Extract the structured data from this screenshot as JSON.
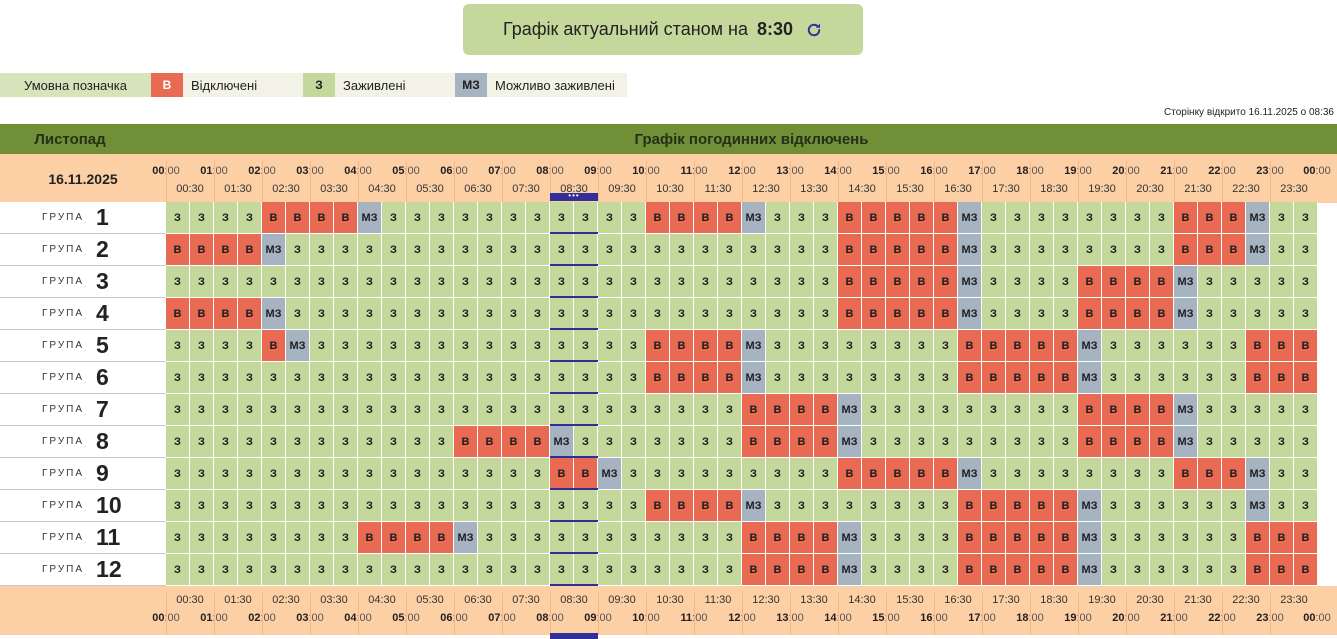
{
  "banner": {
    "text": "Графік актуальний станом на",
    "time": "8:30"
  },
  "legend": {
    "title": "Умовна позначка",
    "items": [
      {
        "code": "В",
        "label": "Відключені"
      },
      {
        "code": "З",
        "label": "Заживлені"
      },
      {
        "code": "МЗ",
        "label": "Можливо заживлені"
      }
    ]
  },
  "page_opened": "Сторінку відкрито 16.11.2025 о 08:36",
  "header": {
    "month": "Листопад",
    "title": "Графік погодинних відключень",
    "date": "16.11.2025"
  },
  "hours": [
    "00",
    "01",
    "02",
    "03",
    "04",
    "05",
    "06",
    "07",
    "08",
    "09",
    "10",
    "11",
    "12",
    "13",
    "14",
    "15",
    "16",
    "17",
    "18",
    "19",
    "20",
    "21",
    "22",
    "23",
    "00"
  ],
  "hour_suffix": ":00",
  "half_hours": [
    "00:30",
    "01:30",
    "02:30",
    "03:30",
    "04:30",
    "05:30",
    "06:30",
    "07:30",
    "08:30",
    "09:30",
    "10:30",
    "11:30",
    "12:30",
    "13:30",
    "14:30",
    "15:30",
    "16:30",
    "17:30",
    "18:30",
    "19:30",
    "20:30",
    "21:30",
    "22:30",
    "23:30"
  ],
  "group_word": "ГРУПА",
  "now_marker": "•••",
  "codes": {
    "z": "З",
    "v": "В",
    "m": "МЗ"
  },
  "colors": {
    "z": "#c5d89c",
    "v": "#e86a52",
    "m": "#a6b3c0",
    "header": "#fccfa5",
    "title_bar": "#718f37",
    "now": "#302f97"
  },
  "groups": [
    {
      "number": "1",
      "slots": "zzzzvvvvmzzzzzzzzzzzvvvvmzzzvvvvvmzzzzzzzzvvvmzz"
    },
    {
      "number": "2",
      "slots": "vvvvmzzzzzzzzzzzzzzzzzzzzzzzvvvvvmzzzzzzzzvvvmzz"
    },
    {
      "number": "3",
      "slots": "zzzzzzzzzzzzzzzzzzzzzzzzzzzzvvvvvmzzzzvvvvmzzzzz"
    },
    {
      "number": "4",
      "slots": "vvvvmzzzzzzzzzzzzzzzzzzzzzzzvvvvvmzzzzvvvvmzzzzz"
    },
    {
      "number": "5",
      "slots": "zzzzvmzzzzzzzzzzzzzzvvvvmzzzzzzzzvvvvvmzzzzzzvvv"
    },
    {
      "number": "6",
      "slots": "zzzzzzzzzzzzzzzzzzzzvvvvmzzzzzzzzvvvvvmzzzzzzvvv"
    },
    {
      "number": "7",
      "slots": "zzzzzzzzzzzzzzzzzzzzzzzzvvvvmzzzzzzzzzvvvvmzzzzz"
    },
    {
      "number": "8",
      "slots": "zzzzzzzzzzzzvvvvmzzzzzzzvvvvmzzzzzzzzzvvvvmzzzzz"
    },
    {
      "number": "9",
      "slots": "zzzzzzzzzzzzzzzzvvmzzzzzzzzzvvvvvmzzzzzzzzvvvmzz"
    },
    {
      "number": "10",
      "slots": "zzzzzzzzzzzzzzzzzzzzvvvvmzzzzzzzzvvvvvmzzzzzzmzz"
    },
    {
      "number": "11",
      "slots": "zzzzzzzzvvvvmzzzzzzzzzzzvvvvmzzzzvvvvvmzzzzzzvvv"
    },
    {
      "number": "12",
      "slots": "zzzzzzzzzzzzzzzzzzzzzzzzvvvvmzzzzvvvvvmzzzzzzvvv"
    }
  ]
}
